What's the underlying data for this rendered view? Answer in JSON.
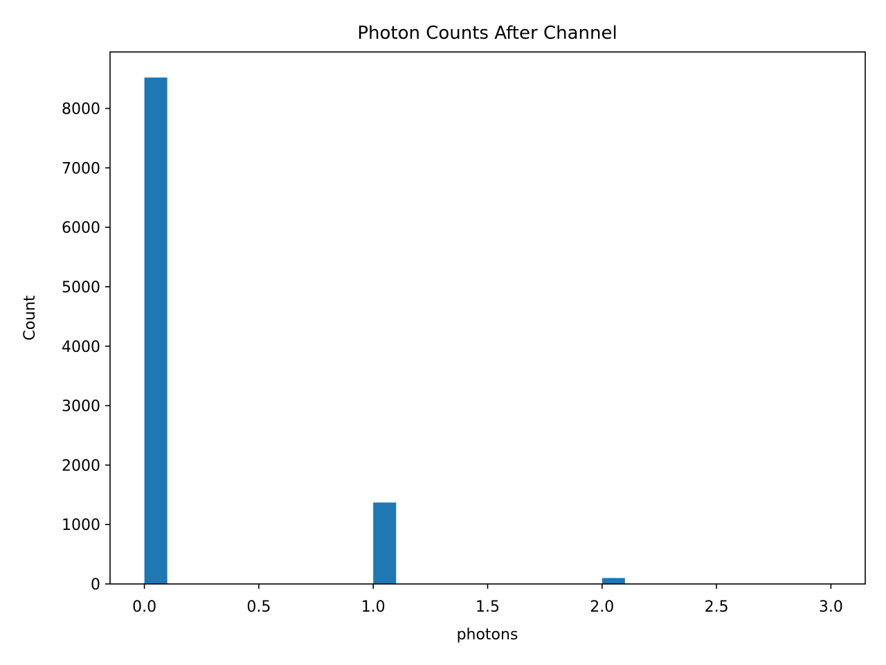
{
  "chart_data": {
    "type": "bar",
    "title": "Photon Counts After Channel",
    "xlabel": "photons",
    "ylabel": "Count",
    "xlim": [
      -0.15,
      3.15
    ],
    "ylim": [
      0,
      8950
    ],
    "x_ticks": [
      "0.0",
      "0.5",
      "1.0",
      "1.5",
      "2.0",
      "2.5",
      "3.0"
    ],
    "y_ticks": [
      "0",
      "1000",
      "2000",
      "3000",
      "4000",
      "5000",
      "6000",
      "7000",
      "8000"
    ],
    "grid": false,
    "color": "#1f77b4",
    "bin_width": 0.1,
    "bars": [
      {
        "x_start": 0.0,
        "value": 8520
      },
      {
        "x_start": 1.0,
        "value": 1370
      },
      {
        "x_start": 2.0,
        "value": 100
      },
      {
        "x_start": 2.9,
        "value": 5
      }
    ]
  }
}
